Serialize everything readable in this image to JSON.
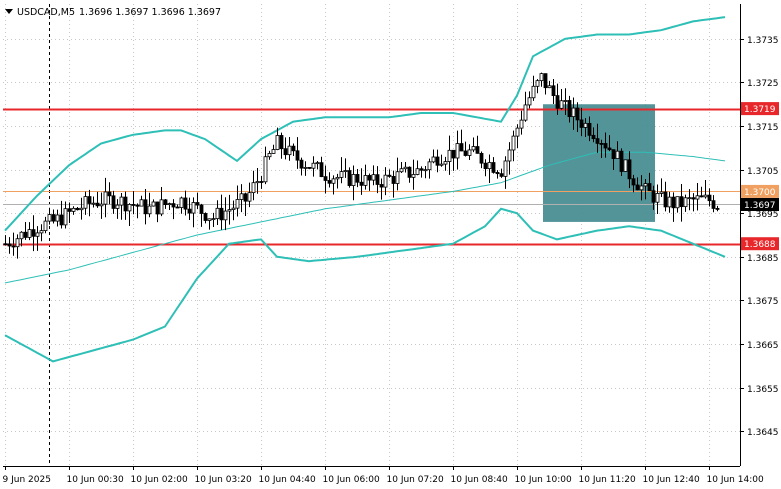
{
  "header": {
    "symbol_timeframe": "USDCAD,M5",
    "ohlc": "1.3696 1.3697 1.3696 1.3697",
    "menu_icon": "triangle-down-icon"
  },
  "chart_data": {
    "type": "candlestick",
    "symbol": "USDCAD",
    "timeframe": "M5",
    "ylim": [
      1.3637,
      1.3743
    ],
    "y_ticks": [
      "1.3735",
      "1.3725",
      "1.3715",
      "1.3705",
      "1.3695",
      "1.3685",
      "1.3675",
      "1.3665",
      "1.3655",
      "1.3645"
    ],
    "x_ticks": [
      "9 Jun 2025",
      "10 Jun 00:30",
      "10 Jun 02:00",
      "10 Jun 03:20",
      "10 Jun 04:40",
      "10 Jun 06:00",
      "10 Jun 07:20",
      "10 Jun 08:40",
      "10 Jun 10:00",
      "10 Jun 11:20",
      "10 Jun 12:40",
      "10 Jun 14:00"
    ],
    "x_tick_bar_index": [
      0,
      16,
      32,
      48,
      64,
      80,
      96,
      112,
      128,
      144,
      160,
      176
    ],
    "bar_count": 179,
    "horizontal_lines": [
      {
        "price": 1.3719,
        "label": "1.3719",
        "color": "#e8272b",
        "style": "solid"
      },
      {
        "price": 1.37,
        "label": "1.3700",
        "color": "#f0a060",
        "style": "solid"
      },
      {
        "price": 1.3688,
        "label": "1.3688",
        "color": "#e8272b",
        "style": "solid"
      }
    ],
    "current_price": {
      "price": 1.3697,
      "label": "1.3697",
      "color": "#000000"
    },
    "highlight_rect": {
      "from_index": 135,
      "to_index": 162,
      "top": 1.372,
      "bottom": 1.3693,
      "color": "#4a8e92"
    },
    "vertical_marker": {
      "bar_index": 11,
      "style": "dashed"
    },
    "bollinger": {
      "color": "#2ebfb7",
      "upper": [
        [
          0,
          1.3691
        ],
        [
          8,
          1.3699
        ],
        [
          16,
          1.3706
        ],
        [
          24,
          1.3711
        ],
        [
          32,
          1.3713
        ],
        [
          40,
          1.3714
        ],
        [
          44,
          1.3714
        ],
        [
          50,
          1.3712
        ],
        [
          58,
          1.3707
        ],
        [
          64,
          1.3712
        ],
        [
          72,
          1.3716
        ],
        [
          80,
          1.3717
        ],
        [
          88,
          1.3717
        ],
        [
          96,
          1.3717
        ],
        [
          104,
          1.3718
        ],
        [
          112,
          1.3718
        ],
        [
          118,
          1.3717
        ],
        [
          124,
          1.3716
        ],
        [
          128,
          1.3722
        ],
        [
          132,
          1.3731
        ],
        [
          140,
          1.3735
        ],
        [
          148,
          1.3736
        ],
        [
          156,
          1.3736
        ],
        [
          164,
          1.3737
        ],
        [
          172,
          1.3739
        ],
        [
          180,
          1.374
        ]
      ],
      "middle": [
        [
          0,
          1.3679
        ],
        [
          16,
          1.3682
        ],
        [
          32,
          1.3686
        ],
        [
          48,
          1.369
        ],
        [
          64,
          1.3693
        ],
        [
          80,
          1.3696
        ],
        [
          96,
          1.3698
        ],
        [
          112,
          1.37
        ],
        [
          124,
          1.3702
        ],
        [
          136,
          1.3706
        ],
        [
          148,
          1.3709
        ],
        [
          160,
          1.3709
        ],
        [
          172,
          1.3708
        ],
        [
          180,
          1.3707
        ]
      ],
      "lower": [
        [
          0,
          1.3667
        ],
        [
          8,
          1.3663
        ],
        [
          12,
          1.3661
        ],
        [
          16,
          1.3662
        ],
        [
          24,
          1.3664
        ],
        [
          32,
          1.3666
        ],
        [
          40,
          1.3669
        ],
        [
          48,
          1.368
        ],
        [
          56,
          1.3688
        ],
        [
          64,
          1.3689
        ],
        [
          68,
          1.3685
        ],
        [
          76,
          1.3684
        ],
        [
          88,
          1.3685
        ],
        [
          96,
          1.3686
        ],
        [
          104,
          1.3687
        ],
        [
          112,
          1.3688
        ],
        [
          120,
          1.3692
        ],
        [
          124,
          1.3696
        ],
        [
          128,
          1.3695
        ],
        [
          132,
          1.3691
        ],
        [
          138,
          1.3689
        ],
        [
          148,
          1.3691
        ],
        [
          156,
          1.3692
        ],
        [
          164,
          1.3691
        ],
        [
          172,
          1.3688
        ],
        [
          180,
          1.3685
        ]
      ]
    },
    "path_keypoints": [
      [
        0,
        1.3688
      ],
      [
        4,
        1.369
      ],
      [
        8,
        1.3692
      ],
      [
        12,
        1.3693
      ],
      [
        16,
        1.3695
      ],
      [
        20,
        1.3697
      ],
      [
        24,
        1.3698
      ],
      [
        28,
        1.3698
      ],
      [
        32,
        1.3697
      ],
      [
        36,
        1.3696
      ],
      [
        40,
        1.3697
      ],
      [
        44,
        1.3698
      ],
      [
        48,
        1.3696
      ],
      [
        52,
        1.3694
      ],
      [
        56,
        1.3696
      ],
      [
        60,
        1.3698
      ],
      [
        64,
        1.3704
      ],
      [
        66,
        1.3708
      ],
      [
        68,
        1.3711
      ],
      [
        72,
        1.3708
      ],
      [
        76,
        1.3706
      ],
      [
        80,
        1.3704
      ],
      [
        84,
        1.3703
      ],
      [
        88,
        1.3703
      ],
      [
        92,
        1.3702
      ],
      [
        96,
        1.3703
      ],
      [
        100,
        1.3704
      ],
      [
        104,
        1.3705
      ],
      [
        108,
        1.3708
      ],
      [
        112,
        1.3709
      ],
      [
        116,
        1.3709
      ],
      [
        120,
        1.3707
      ],
      [
        124,
        1.3705
      ],
      [
        127,
        1.3712
      ],
      [
        130,
        1.372
      ],
      [
        134,
        1.3726
      ],
      [
        137,
        1.3722
      ],
      [
        140,
        1.3719
      ],
      [
        144,
        1.3716
      ],
      [
        148,
        1.3713
      ],
      [
        152,
        1.3709
      ],
      [
        156,
        1.3704
      ],
      [
        160,
        1.37
      ],
      [
        164,
        1.3698
      ],
      [
        168,
        1.3697
      ],
      [
        172,
        1.3698
      ],
      [
        176,
        1.3698
      ],
      [
        178,
        1.3697
      ]
    ],
    "price_labels_on_axis": [
      "1.3719",
      "1.3700",
      "1.3697",
      "1.3688"
    ]
  }
}
